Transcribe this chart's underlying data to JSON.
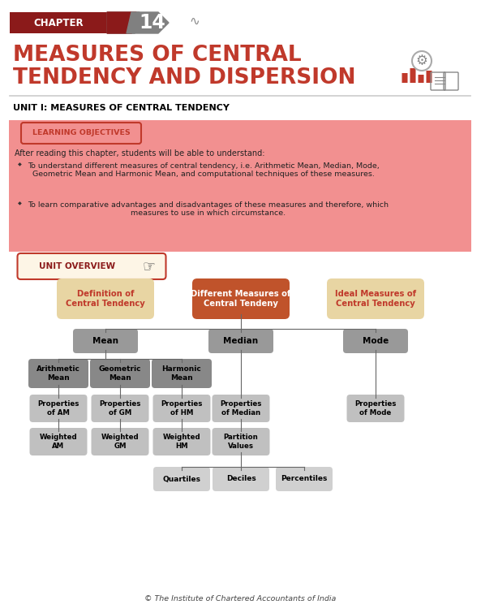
{
  "bg_color": "#ffffff",
  "title_line1": "MEASURES OF CENTRAL",
  "title_line2": "TENDENCY AND DISPERSION",
  "title_color": "#c0392b",
  "unit_header": "UNIT I: MEASURES OF CENTRAL TENDENCY",
  "learning_box_bg": "#f29090",
  "learning_label": "LEARNING OBJECTIVES",
  "learning_label_color": "#c0392b",
  "learning_body": "After reading this chapter, students will be able to understand:",
  "bullet1": "To understand different measures of central tendency, i.e. Arithmetic Mean, Median, Mode,\nGeometric Mean and Harmonic Mean, and computational techniques of these measures.",
  "bullet2": "To learn comparative advantages and disadvantages of these measures and therefore, which\nmeasures to use in which circumstance.",
  "unit_overview_label": "UNIT OVERVIEW",
  "top_boxes": [
    {
      "label": "Definition of\nCentral Tendency",
      "bg": "#e8d5a3",
      "text_color": "#c0392b"
    },
    {
      "label": "Different Measures of\nCentral Tendeny",
      "bg": "#c0532b",
      "text_color": "#ffffff"
    },
    {
      "label": "Ideal Measures of\nCentral Tendency",
      "bg": "#e8d5a3",
      "text_color": "#c0392b"
    }
  ],
  "level2_boxes": [
    {
      "label": "Mean",
      "bg": "#999999",
      "text_color": "#000000"
    },
    {
      "label": "Median",
      "bg": "#999999",
      "text_color": "#000000"
    },
    {
      "label": "Mode",
      "bg": "#999999",
      "text_color": "#000000"
    }
  ],
  "level3_boxes": [
    {
      "label": "Arithmetic\nMean",
      "bg": "#888888",
      "text_color": "#000000"
    },
    {
      "label": "Geometric\nMean",
      "bg": "#888888",
      "text_color": "#000000"
    },
    {
      "label": "Harmonic\nMean",
      "bg": "#888888",
      "text_color": "#000000"
    }
  ],
  "level4_boxes": [
    {
      "label": "Properties\nof AM",
      "bg": "#c0c0c0",
      "text_color": "#000000"
    },
    {
      "label": "Properties\nof GM",
      "bg": "#c0c0c0",
      "text_color": "#000000"
    },
    {
      "label": "Properties\nof HM",
      "bg": "#c0c0c0",
      "text_color": "#000000"
    },
    {
      "label": "Properties\nof Median",
      "bg": "#c0c0c0",
      "text_color": "#000000"
    },
    {
      "label": "Properties\nof Mode",
      "bg": "#c0c0c0",
      "text_color": "#000000"
    }
  ],
  "level5_boxes": [
    {
      "label": "Weighted\nAM",
      "bg": "#c0c0c0",
      "text_color": "#000000"
    },
    {
      "label": "Weighted\nGM",
      "bg": "#c0c0c0",
      "text_color": "#000000"
    },
    {
      "label": "Weighted\nHM",
      "bg": "#c0c0c0",
      "text_color": "#000000"
    },
    {
      "label": "Partition\nValues",
      "bg": "#c0c0c0",
      "text_color": "#000000"
    }
  ],
  "level6_boxes": [
    {
      "label": "Quartiles",
      "bg": "#d0d0d0",
      "text_color": "#000000"
    },
    {
      "label": "Deciles",
      "bg": "#d0d0d0",
      "text_color": "#000000"
    },
    {
      "label": "Percentiles",
      "bg": "#d0d0d0",
      "text_color": "#000000"
    }
  ],
  "footer": "© The Institute of Chartered Accountants of India",
  "line_color": "#666666"
}
